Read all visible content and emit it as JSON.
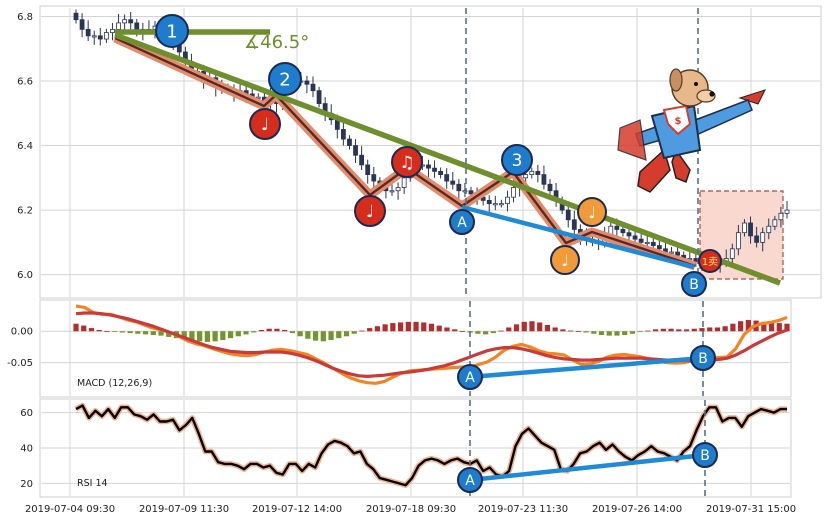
{
  "chart_data": [
    {
      "type": "candlestick",
      "panel": "price",
      "ylim": [
        5.94,
        6.82
      ],
      "yticks": [
        6.0,
        6.2,
        6.4,
        6.6,
        6.8
      ],
      "close": [
        6.79,
        6.76,
        6.74,
        6.74,
        6.73,
        6.75,
        6.76,
        6.78,
        6.79,
        6.78,
        6.75,
        6.76,
        6.76,
        6.77,
        6.75,
        6.72,
        6.73,
        6.69,
        6.66,
        6.63,
        6.63,
        6.6,
        6.61,
        6.58,
        6.58,
        6.57,
        6.56,
        6.57,
        6.56,
        6.55,
        6.55,
        6.53,
        6.55,
        6.53,
        6.58,
        6.6,
        6.6,
        6.6,
        6.59,
        6.57,
        6.53,
        6.5,
        6.48,
        6.45,
        6.42,
        6.4,
        6.37,
        6.34,
        6.31,
        6.29,
        6.28,
        6.26,
        6.26,
        6.27,
        6.3,
        6.32,
        6.34,
        6.34,
        6.33,
        6.32,
        6.31,
        6.29,
        6.28,
        6.26,
        6.26,
        6.25,
        6.24,
        6.23,
        6.22,
        6.22,
        6.22,
        6.24,
        6.27,
        6.3,
        6.31,
        6.32,
        6.31,
        6.28,
        6.26,
        6.23,
        6.2,
        6.17,
        6.14,
        6.12,
        6.11,
        6.1,
        6.1,
        6.12,
        6.15,
        6.14,
        6.13,
        6.12,
        6.11,
        6.1,
        6.1,
        6.09,
        6.08,
        6.07,
        6.07,
        6.06,
        6.05,
        6.05,
        6.04,
        6.04,
        6.03,
        6.03,
        6.04,
        6.05,
        6.08,
        6.13,
        6.16,
        6.12,
        6.1,
        6.13,
        6.15,
        6.17,
        6.19,
        6.2
      ]
    },
    {
      "type": "line",
      "panel": "macd",
      "label": "MACD (12,26,9)",
      "ylim": [
        -0.1,
        0.045
      ],
      "yticks": [
        0.0,
        -0.05
      ],
      "series": [
        {
          "role": "macd",
          "color": "#f28424",
          "values": [
            0.04,
            0.038,
            0.03,
            0.027,
            0.027,
            0.023,
            0.018,
            0.015,
            0.01,
            0.005,
            0.002,
            -0.002,
            -0.008,
            -0.015,
            -0.02,
            -0.023,
            -0.028,
            -0.032,
            -0.036,
            -0.038,
            -0.039,
            -0.037,
            -0.033,
            -0.03,
            -0.029,
            -0.031,
            -0.034,
            -0.037,
            -0.044,
            -0.051,
            -0.059,
            -0.067,
            -0.074,
            -0.079,
            -0.082,
            -0.083,
            -0.08,
            -0.073,
            -0.067,
            -0.063,
            -0.062,
            -0.061,
            -0.06,
            -0.059,
            -0.058,
            -0.057,
            -0.057,
            -0.053,
            -0.049,
            -0.041,
            -0.03,
            -0.024,
            -0.021,
            -0.025,
            -0.031,
            -0.035,
            -0.036,
            -0.038,
            -0.046,
            -0.053,
            -0.052,
            -0.048,
            -0.041,
            -0.038,
            -0.037,
            -0.039,
            -0.041,
            -0.044,
            -0.048,
            -0.05,
            -0.051,
            -0.05,
            -0.047,
            -0.044,
            -0.043,
            -0.042,
            -0.041,
            -0.028,
            -0.005,
            0.007,
            0.012,
            0.014,
            0.017,
            0.022
          ]
        },
        {
          "role": "signal",
          "color": "#c93a38",
          "values": [
            0.028,
            0.029,
            0.029,
            0.028,
            0.026,
            0.023,
            0.02,
            0.016,
            0.012,
            0.008,
            0.003,
            -0.002,
            -0.007,
            -0.012,
            -0.017,
            -0.022,
            -0.026,
            -0.029,
            -0.032,
            -0.033,
            -0.034,
            -0.034,
            -0.033,
            -0.033,
            -0.033,
            -0.035,
            -0.038,
            -0.042,
            -0.047,
            -0.053,
            -0.059,
            -0.064,
            -0.068,
            -0.071,
            -0.072,
            -0.071,
            -0.07,
            -0.068,
            -0.066,
            -0.065,
            -0.063,
            -0.061,
            -0.058,
            -0.055,
            -0.051,
            -0.046,
            -0.041,
            -0.036,
            -0.031,
            -0.028,
            -0.026,
            -0.026,
            -0.028,
            -0.031,
            -0.035,
            -0.039,
            -0.042,
            -0.044,
            -0.045,
            -0.046,
            -0.046,
            -0.045,
            -0.044,
            -0.043,
            -0.043,
            -0.043,
            -0.043,
            -0.044,
            -0.045,
            -0.046,
            -0.046,
            -0.047,
            -0.047,
            -0.047,
            -0.046,
            -0.045,
            -0.043,
            -0.038,
            -0.031,
            -0.023,
            -0.016,
            -0.009,
            -0.003,
            0.002
          ]
        }
      ],
      "histogram": [
        0.012,
        0.009,
        0.005,
        0.002,
        0.0,
        -0.001,
        -0.002,
        -0.003,
        -0.004,
        -0.005,
        -0.006,
        -0.007,
        -0.009,
        -0.011,
        -0.013,
        -0.015,
        -0.016,
        -0.017,
        -0.016,
        -0.014,
        -0.011,
        -0.008,
        -0.005,
        -0.002,
        0.002,
        0.004,
        0.004,
        0.002,
        -0.003,
        -0.008,
        -0.012,
        -0.015,
        -0.016,
        -0.014,
        -0.011,
        -0.008,
        -0.004,
        0.001,
        0.005,
        0.008,
        0.011,
        0.013,
        0.014,
        0.015,
        0.015,
        0.014,
        0.012,
        0.009,
        0.006,
        0.003,
        0.0,
        -0.002,
        -0.004,
        -0.005,
        -0.003,
        0.001,
        0.006,
        0.011,
        0.015,
        0.016,
        0.014,
        0.01,
        0.006,
        0.003,
        0.001,
        0.0,
        -0.002,
        -0.004,
        -0.006,
        -0.007,
        -0.007,
        -0.006,
        -0.004,
        -0.001,
        0.001,
        0.003,
        0.004,
        0.004,
        0.003,
        0.003,
        0.004,
        0.005,
        0.006,
        0.006,
        0.008,
        0.012,
        0.016,
        0.018,
        0.017,
        0.015,
        0.014,
        0.013,
        0.012
      ],
      "annotations": [
        "A",
        "B"
      ]
    },
    {
      "type": "line",
      "panel": "rsi",
      "label": "RSI 14",
      "ylim": [
        14,
        66
      ],
      "yticks": [
        20,
        40,
        60
      ],
      "values": [
        62,
        64,
        57,
        61,
        58,
        62,
        57,
        63,
        63,
        59,
        58,
        56,
        59,
        55,
        55,
        56,
        50,
        53,
        57,
        48,
        38,
        38,
        32,
        31,
        31,
        30,
        28,
        31,
        31,
        29,
        30,
        26,
        25,
        31,
        31,
        27,
        31,
        29,
        37,
        42,
        44,
        43,
        41,
        37,
        38,
        31,
        28,
        23,
        22,
        21,
        20,
        19,
        23,
        30,
        33,
        34,
        33,
        31,
        33,
        34,
        32,
        31,
        33,
        27,
        29,
        25,
        24,
        27,
        41,
        48,
        51,
        47,
        43,
        41,
        39,
        28,
        27,
        31,
        37,
        38,
        41,
        43,
        39,
        42,
        38,
        35,
        33,
        36,
        38,
        41,
        38,
        37,
        35,
        33,
        38,
        41,
        50,
        58,
        63,
        63,
        55,
        57,
        57,
        52,
        58,
        60,
        62,
        61,
        60,
        62,
        62
      ],
      "annotations": [
        "A",
        "B"
      ]
    }
  ],
  "xaxis": {
    "tick_labels": [
      "2019-07-04 09:30",
      "2019-07-09 11:30",
      "2019-07-12 14:00",
      "2019-07-18 09:30",
      "2019-07-23 11:30",
      "2019-07-26 14:00",
      "2019-07-31 15:00"
    ]
  },
  "annotations": {
    "angle_label": "∡46.5°",
    "wave_numbers": [
      "1",
      "2",
      "3"
    ],
    "note_symbol_1": "♩",
    "note_symbol_2": "♫",
    "sell_badge": "1卖",
    "divergence_points": [
      "A",
      "B"
    ]
  },
  "colors": {
    "trendline": "#6e8f2c",
    "wave_outline": "#e38b6d",
    "wave_core": "#5a2a22",
    "divergence": "#1f8ad6",
    "badge_blue": "#1d7ccb",
    "badge_red": "#d62c1b",
    "badge_orange": "#f29a38",
    "candle_up": "#ffffff",
    "candle_down": "#2b3556",
    "hist_pos": "#b22d2d",
    "hist_neg": "#72952d",
    "rsi_line": "#000000",
    "rsi_glow": "#f4b18b",
    "grid": "#d4d4d4",
    "guide": "#5a7184",
    "zone_fill": "#f8d8cf"
  }
}
